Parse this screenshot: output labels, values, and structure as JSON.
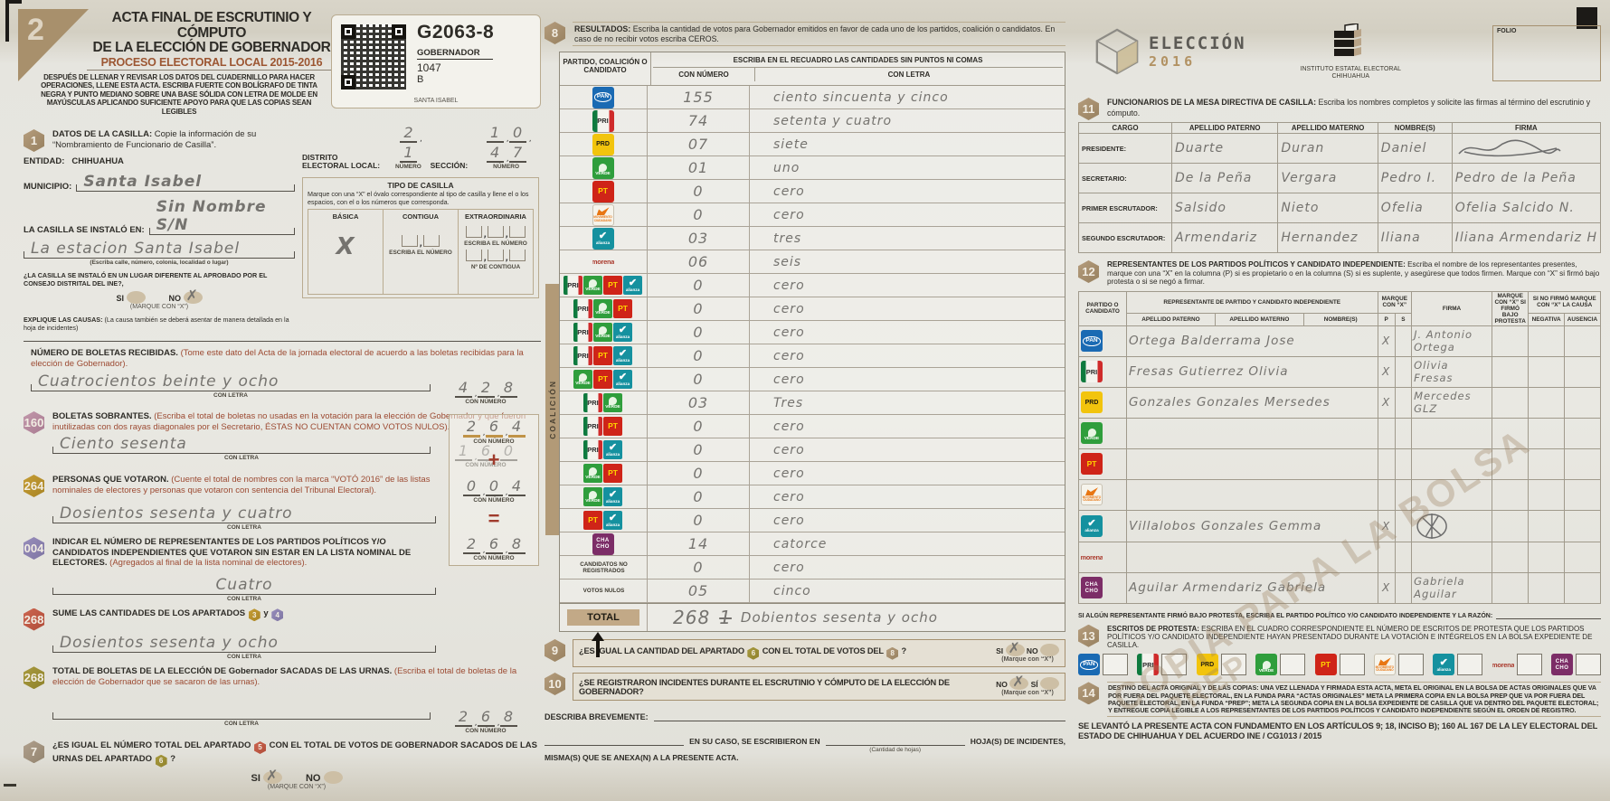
{
  "page": {
    "corner_number": "2",
    "watermark_line1": "COPIA PARA LA BOLSA",
    "watermark_line2": "PREP"
  },
  "parties": {
    "pan": {
      "name": "PAN",
      "lines": [
        "PAN"
      ]
    },
    "pri": {
      "name": "PRI",
      "lines": [
        "PRI"
      ]
    },
    "prd": {
      "name": "PRD",
      "lines": [
        "PRD"
      ]
    },
    "verde": {
      "name": "Partido Verde",
      "lines": [
        "VERDE"
      ]
    },
    "pt": {
      "name": "PT",
      "lines": [
        "PT"
      ]
    },
    "mc": {
      "name": "Movimiento Ciudadano",
      "lines": [
        "MOVIMIENTO",
        "CIUDADANO"
      ]
    },
    "alianza": {
      "name": "Nueva Alianza",
      "lines": [
        "alianza"
      ]
    },
    "morena": {
      "name": "morena",
      "lines": [
        "morena"
      ]
    },
    "chacho": {
      "name": "CHACHO",
      "lines": [
        "CHA",
        "CHO"
      ]
    }
  },
  "header": {
    "title1": "ACTA FINAL DE ESCRUTINIO Y CÓMPUTO",
    "title2": "DE LA ELECCIÓN DE GOBERNADOR",
    "subtitle": "PROCESO ELECTORAL LOCAL 2015-2016",
    "instructions": "DESPUÉS DE LLENAR Y REVISAR LOS DATOS DEL CUADERNILLO PARA HACER OPERACIONES, LLENE ESTA ACTA. ESCRIBA FUERTE CON BOLÍGRAFO DE TINTA NEGRA Y PUNTO MEDIANO SOBRE UNA BASE SÓLIDA CON LETRA DE MOLDE EN MAYÚSCULAS APLICANDO SUFICIENTE APOYO PARA QUE LAS COPIAS SEAN LEGIBLES"
  },
  "qr": {
    "code": "G2063-8",
    "line2": "GOBERNADOR",
    "line3": "1047",
    "line4": "B",
    "line5": "SANTA ISABEL"
  },
  "s1": {
    "num": "1",
    "title": "DATOS DE LA CASILLA:",
    "note": "Copie la información de su “Nombramiento de Funcionario de Casilla”.",
    "entidad_label": "ENTIDAD:",
    "entidad": "CHIHUAHUA",
    "municipio_label": "MUNICIPIO:",
    "municipio": "Santa Isabel",
    "instalada_label": "LA CASILLA SE INSTALÓ EN:",
    "instalada1": "Sin Nombre S/N",
    "instalada2": "La estacion Santa Isabel",
    "instalada_caption": "(Escriba calle, número, colonia, localidad o lugar)",
    "pregunta": "¿LA CASILLA SE INSTALÓ EN UN LUGAR DIFERENTE AL APROBADO POR EL CONSEJO DISTRITAL DEL INE?,",
    "si": "SI",
    "no": "NO",
    "respuesta": "NO",
    "marque": "(MARQUE CON “X”)",
    "explique": "EXPLIQUE LAS CAUSAS:",
    "explique_note": "(La causa también se deberá asentar de manera detallada en la hoja de incidentes)",
    "distrito_label": "DISTRITO ELECTORAL LOCAL:",
    "distrito": "21",
    "seccion_label": "SECCIÓN:",
    "seccion": "1047",
    "numero_caption": "NÚMERO"
  },
  "tipo": {
    "title": "TIPO DE CASILLA",
    "desc": "Marque con una “X” el óvalo correspondiente al tipo de casilla y llene el o los espacios, con el o los números que corresponda.",
    "basica": "BÁSICA",
    "basica_mark": "X",
    "contigua": "CONTIGUA",
    "escriba": "ESCRIBA EL NÚMERO",
    "extraordinaria": "EXTRAORDINARIA",
    "ncontigua": "Nº DE CONTIGUA"
  },
  "boletas": {
    "title": "NÚMERO DE BOLETAS RECIBIDAS.",
    "note": "(Tome este dato del Acta de la jornada electoral de acuerdo a las boletas recibidas para la elección de Gobernador).",
    "letra": "Cuatrocientos beinte y ocho",
    "num": "428",
    "con_letra": "CON LETRA",
    "con_numero": "CON NÚMERO"
  },
  "s2": {
    "num": "160",
    "title": "BOLETAS SOBRANTES.",
    "note": "(Escriba el total de boletas no usadas en la votación para la elección de Gobernador y que fueron inutilizadas con dos rayas diagonales por el Secretario, ÉSTAS NO CUENTAN COMO VOTOS NULOS).",
    "letra": "Ciento sesenta"
  },
  "s3": {
    "num": "264",
    "title": "PERSONAS QUE VOTARON.",
    "note": "(Cuente el total de nombres con la marca “VOTÓ 2016” de las listas nominales de electores y personas que votaron con sentencia del Tribunal Electoral).",
    "letra": "Dosientos sesenta y cuatro"
  },
  "s4": {
    "num": "004",
    "title": "INDICAR EL NÚMERO DE REPRESENTANTES DE LOS PARTIDOS POLÍTICOS Y/O CANDIDATOS INDEPENDIENTES QUE VOTARON SIN ESTAR EN LA LISTA NOMINAL DE ELECTORES.",
    "note": "(Agregados al final de la lista nominal de electores).",
    "letra": "Cuatro"
  },
  "s5": {
    "num": "268",
    "title_pre": "SUME LAS CANTIDADES DE LOS APARTADOS",
    "b1": "3",
    "y": "y",
    "b2": "4",
    "letra": "Dosientos sesenta y ocho"
  },
  "sumbox": {
    "plus": "+",
    "equals": "="
  },
  "s6": {
    "num": "268",
    "title": "TOTAL DE BOLETAS DE LA ELECCIÓN DE Gobernador SACADAS DE LAS URNAS.",
    "note": "(Escriba el total de boletas de la elección de Gobernador que se sacaron de las urnas).",
    "letra": ""
  },
  "s7": {
    "num": "7",
    "pre": "¿ES IGUAL EL NÚMERO TOTAL DEL APARTADO",
    "b1": "5",
    "mid": "CON EL TOTAL DE VOTOS DE GOBERNADOR SACADOS DE LAS URNAS DEL APARTADO",
    "b2": "6",
    "post": "?",
    "si": "SI",
    "no": "NO",
    "respuesta": "SI",
    "marque": "(MARQUE CON “X”)"
  },
  "s8": {
    "num": "8",
    "title": "RESULTADOS:",
    "note": "Escriba la cantidad de votos para Gobernador emitidos en favor de cada uno de los partidos, coalición o candidatos. En caso de no recibir votos escriba CEROS.",
    "th_party": "PARTIDO, COALICIÓN O CANDIDATO",
    "th_recuadro": "ESCRIBA EN EL RECUADRO LAS CANTIDADES SIN PUNTOS NI COMAS",
    "th_num": "CON NÚMERO",
    "th_letra": "CON LETRA",
    "coalicion": "COALICIÓN"
  },
  "results": {
    "rows": [
      {
        "logos": [
          "pan"
        ],
        "num": "155",
        "letra": "ciento sincuenta y cinco"
      },
      {
        "logos": [
          "pri"
        ],
        "num": "74",
        "letra": "setenta y cuatro"
      },
      {
        "logos": [
          "prd"
        ],
        "num": "07",
        "letra": "siete"
      },
      {
        "logos": [
          "verde"
        ],
        "num": "01",
        "letra": "uno"
      },
      {
        "logos": [
          "pt"
        ],
        "num": "0",
        "letra": "cero"
      },
      {
        "logos": [
          "mc"
        ],
        "num": "0",
        "letra": "cero"
      },
      {
        "logos": [
          "alianza"
        ],
        "num": "03",
        "letra": "tres"
      },
      {
        "logos": [
          "morena"
        ],
        "num": "06",
        "letra": "seis"
      },
      {
        "logos": [
          "pri",
          "verde",
          "pt",
          "alianza"
        ],
        "num": "0",
        "letra": "cero",
        "coal": "coal"
      },
      {
        "logos": [
          "pri",
          "verde",
          "pt"
        ],
        "num": "0",
        "letra": "cero",
        "coal": "coal"
      },
      {
        "logos": [
          "pri",
          "verde",
          "alianza"
        ],
        "num": "0",
        "letra": "cero",
        "coal": "coal"
      },
      {
        "logos": [
          "pri",
          "pt",
          "alianza"
        ],
        "num": "0",
        "letra": "cero",
        "coal": "coal"
      },
      {
        "logos": [
          "verde",
          "pt",
          "alianza"
        ],
        "num": "0",
        "letra": "cero",
        "coal": "coal"
      },
      {
        "logos": [
          "pri",
          "verde"
        ],
        "num": "03",
        "letra": "Tres",
        "coal": "coal"
      },
      {
        "logos": [
          "pri",
          "pt"
        ],
        "num": "0",
        "letra": "cero",
        "coal": "coal"
      },
      {
        "logos": [
          "pri",
          "alianza"
        ],
        "num": "0",
        "letra": "cero",
        "coal": "coal"
      },
      {
        "logos": [
          "verde",
          "pt"
        ],
        "num": "0",
        "letra": "cero",
        "coal": "coal"
      },
      {
        "logos": [
          "verde",
          "alianza"
        ],
        "num": "0",
        "letra": "cero",
        "coal": "coal"
      },
      {
        "logos": [
          "pt",
          "alianza"
        ],
        "num": "0",
        "letra": "cero",
        "coal": "coal"
      },
      {
        "logos": [
          "chacho"
        ],
        "num": "14",
        "letra": "catorce"
      },
      {
        "label": "CANDIDATOS NO REGISTRADOS",
        "num": "0",
        "letra": "cero"
      },
      {
        "label": "VOTOS NULOS",
        "num": "05",
        "letra": "cinco"
      }
    ],
    "total_label": "TOTAL",
    "total_num": "268",
    "total_extra": "1",
    "total_letra": "Dobientos sesenta y ocho"
  },
  "s9": {
    "num": "9",
    "pre": "¿ES IGUAL LA CANTIDAD DEL APARTADO",
    "b1": "6",
    "mid": "CON EL TOTAL DE VOTOS DEL",
    "b2": "8",
    "post": "?",
    "si": "SI",
    "no": "NO",
    "respuesta": "SI",
    "marque": "(Marque con “X”)"
  },
  "s10": {
    "num": "10",
    "text": "¿SE REGISTRARON INCIDENTES DURANTE EL ESCRUTINIO Y CÓMPUTO DE LA ELECCIÓN DE GOBERNADOR?",
    "no": "NO",
    "si": "SÍ",
    "respuesta": "NO",
    "marque": "(Marque con “X”)"
  },
  "incidentes": {
    "describa": "DESCRIBA BREVEMENTE:",
    "en_su_caso": "EN SU CASO, SE ESCRIBIERON EN",
    "cantidad": "(Cantidad de hojas)",
    "hojas": "HOJA(S) DE INCIDENTES,",
    "anexa": "MISMA(S) QUE SE ANEXA(N) A LA PRESENTE ACTA."
  },
  "rightheader": {
    "eleccion": "ELECCIÓN",
    "anio": "2016",
    "iee1": "INSTITUTO ESTATAL ELECTORAL",
    "iee2": "CHIHUAHUA",
    "folio": "FOLIO"
  },
  "s11": {
    "num": "11",
    "title": "FUNCIONARIOS DE LA MESA DIRECTIVA DE CASILLA:",
    "note": "Escriba los nombres completos y solicite las firmas al término del escrutinio y cómputo.",
    "cols": {
      "cargo": "CARGO",
      "paterno": "APELLIDO PATERNO",
      "materno": "APELLIDO MATERNO",
      "nombres": "NOMBRE(S)",
      "firma": "FIRMA"
    },
    "rows": [
      {
        "cargo": "PRESIDENTE:",
        "paterno": "Duarte",
        "materno": "Duran",
        "nombres": "Daniel",
        "firma": "",
        "scribble": "flourish"
      },
      {
        "cargo": "SECRETARIO:",
        "paterno": "De la Peña",
        "materno": "Vergara",
        "nombres": "Pedro I.",
        "firma": "Pedro de la Peña",
        "scribble": ""
      },
      {
        "cargo": "PRIMER ESCRUTADOR:",
        "paterno": "Salsido",
        "materno": "Nieto",
        "nombres": "Ofelia",
        "firma": "Ofelia Salcido N.",
        "scribble": ""
      },
      {
        "cargo": "SEGUNDO ESCRUTADOR:",
        "paterno": "Armendariz",
        "materno": "Hernandez",
        "nombres": "Iliana",
        "firma": "Iliana Armendariz H",
        "scribble": ""
      }
    ]
  },
  "s12": {
    "num": "12",
    "title": "REPRESENTANTES DE LOS PARTIDOS POLÍTICOS Y CANDIDATO INDEPENDIENTE:",
    "note": "Escriba el nombre de los representantes presentes, marque con una “X” en la columna (P) si es propietario o en la columna (S) si es suplente, y asegúrese que todos firmen. Marque con “X” si firmó bajo protesta o si se negó a firmar.",
    "cols": {
      "partido": "PARTIDO O CANDIDATO",
      "rep": "REPRESENTANTE DE PARTIDO Y CANDIDATO INDEPENDIENTE",
      "paterno": "APELLIDO PATERNO",
      "materno": "APELLIDO MATERNO",
      "nombres": "NOMBRE(S)",
      "marque": "MARQUE CON “X”",
      "p": "P",
      "s": "S",
      "firma": "FIRMA",
      "protesta": "MARQUE CON “X” SI FIRMÓ BAJO PROTESTA",
      "sinofirmo": "SI NO FIRMÓ MARQUE CON “X” LA CAUSA",
      "negativa": "NEGATIVA",
      "ausencia": "AUSENCIA"
    },
    "rows": [
      {
        "logos": [
          "pan"
        ],
        "name": "Ortega Balderrama Jose",
        "p": "X",
        "s": "",
        "firma": "J. Antonio Ortega",
        "scribble": ""
      },
      {
        "logos": [
          "pri"
        ],
        "name": "Fresas Gutierrez Olivia",
        "p": "X",
        "s": "",
        "firma": "Olivia Fresas",
        "scribble": ""
      },
      {
        "logos": [
          "prd"
        ],
        "name": "Gonzales Gonzales Mersedes",
        "p": "X",
        "s": "",
        "firma": "Mercedes GLZ",
        "scribble": ""
      },
      {
        "logos": [
          "verde"
        ],
        "name": "",
        "p": "",
        "s": "",
        "firma": "",
        "scribble": ""
      },
      {
        "logos": [
          "pt"
        ],
        "name": "",
        "p": "",
        "s": "",
        "firma": "",
        "scribble": ""
      },
      {
        "logos": [
          "mc"
        ],
        "name": "",
        "p": "",
        "s": "",
        "firma": "",
        "scribble": ""
      },
      {
        "logos": [
          "alianza"
        ],
        "name": "Villalobos Gonzales Gemma",
        "p": "X",
        "s": "",
        "firma": "",
        "scribble": "circle"
      },
      {
        "logos": [
          "morena"
        ],
        "name": "",
        "p": "",
        "s": "",
        "firma": "",
        "scribble": ""
      },
      {
        "logos": [
          "chacho"
        ],
        "name": "Aguilar Armendariz Gabriela",
        "p": "X",
        "s": "",
        "firma": "Gabriela Aguilar",
        "scribble": ""
      }
    ],
    "protesta_line": "SI ALGÚN REPRESENTANTE FIRMÓ BAJO PROTESTA, ESCRIBA EL PARTIDO POLÍTICO Y/O CANDIDATO INDEPENDIENTE Y LA RAZÓN:"
  },
  "s13": {
    "num": "13",
    "title": "ESCRITOS DE PROTESTA:",
    "note": "ESCRIBA EN EL CUADRO CORRESPONDIENTE EL NÚMERO DE ESCRITOS DE PROTESTA QUE LOS PARTIDOS POLÍTICOS Y/O CANDIDATO INDEPENDIENTE HAYAN PRESENTADO DURANTE LA VOTACIÓN E INTÉGRELOS EN LA BOLSA  EXPEDIENTE DE CASILLA.",
    "items": [
      {
        "logos": [
          "pan"
        ]
      },
      {
        "logos": [
          "pri"
        ]
      },
      {
        "logos": [
          "prd"
        ]
      },
      {
        "logos": [
          "verde"
        ]
      },
      {
        "logos": [
          "pt"
        ]
      },
      {
        "logos": [
          "mc"
        ]
      },
      {
        "logos": [
          "alianza"
        ]
      },
      {
        "logos": [
          "morena"
        ]
      },
      {
        "logos": [
          "chacho"
        ]
      }
    ]
  },
  "s14": {
    "num": "14",
    "title": "DESTINO DEL ACTA ORIGINAL Y DE LAS COPIAS:",
    "text": "UNA VEZ LLENADA Y FIRMADA ESTA ACTA, META EL ORIGINAL EN LA BOLSA DE ACTAS ORIGINALES QUE VA POR FUERA DEL PAQUETE ELECTORAL, EN LA FUNDA PARA “ACTAS ORIGINALES” META LA PRIMERA COPIA EN LA BOLSA PREP QUE VA POR FUERA DEL PAQUETE ELECTORAL, EN LA FUNDA “PREP”; META LA SEGUNDA COPIA EN LA BOLSA EXPEDIENTE DE CASILLA QUE VA DENTRO DEL PAQUETE ELECTORAL; Y ENTREGUE COPIA LEGIBLE A LOS REPRESENTANTES DE LOS PARTIDOS POLÍTICOS Y CANDIDATO INDEPENDIENTE SEGÚN EL ORDEN DE REGISTRO."
  },
  "legal": "SE LEVANTÓ LA PRESENTE ACTA CON FUNDAMENTO EN LOS ARTÍCULOS 9; 18, INCISO B); 160 AL 167 DE LA LEY  ELECTORAL DEL ESTADO DE CHIHUAHUA Y DEL ACUERDO INE / CG1013 / 2015"
}
